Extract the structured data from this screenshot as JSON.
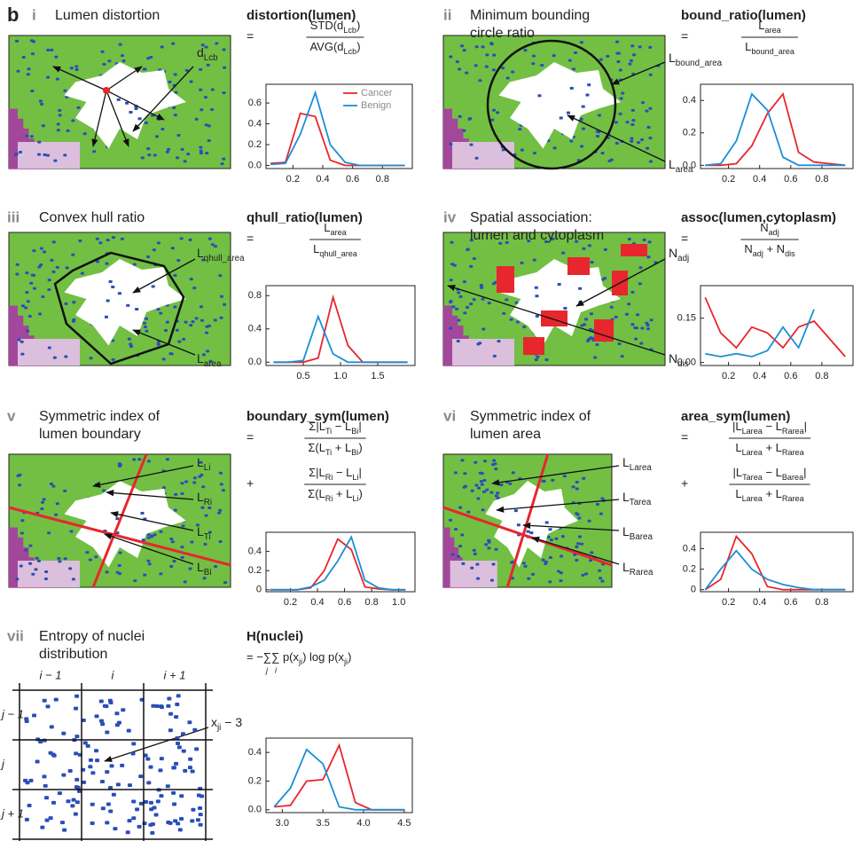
{
  "figure_label": "b",
  "panels": [
    {
      "numeral": "i",
      "title": [
        "Lumen distortion"
      ],
      "annotations": [
        [
          {
            "t": "d"
          },
          {
            "sub": "Lcb"
          }
        ]
      ],
      "formula": [
        {
          "op": "=",
          "num": [
            {
              "t": "STD(d"
            },
            {
              "sub": "Lcb"
            },
            {
              "t": ")"
            }
          ],
          "den": [
            {
              "t": "AVG(d"
            },
            {
              "sub": "Lcb"
            },
            {
              "t": ")"
            }
          ]
        }
      ]
    },
    {
      "numeral": "ii",
      "title": [
        "Minimum bounding",
        "circle ratio"
      ],
      "annotations": [
        [
          {
            "t": "L"
          },
          {
            "sub": "bound_area"
          }
        ],
        [
          {
            "t": "L"
          },
          {
            "sub": "area"
          }
        ]
      ],
      "formula": [
        {
          "op": "=",
          "num": [
            {
              "t": "L"
            },
            {
              "sub": "area"
            }
          ],
          "den": [
            {
              "t": "L"
            },
            {
              "sub": "bound_area"
            }
          ]
        }
      ]
    },
    {
      "numeral": "iii",
      "title": [
        "Convex hull ratio"
      ],
      "annotations": [
        [
          {
            "t": "L"
          },
          {
            "sub": "qhull_area"
          }
        ],
        [
          {
            "t": "L"
          },
          {
            "sub": "area"
          }
        ]
      ],
      "formula": [
        {
          "op": "=",
          "num": [
            {
              "t": "L"
            },
            {
              "sub": "area"
            }
          ],
          "den": [
            {
              "t": "L"
            },
            {
              "sub": "qhull_area"
            }
          ]
        }
      ]
    },
    {
      "numeral": "iv",
      "title": [
        "Spatial association:",
        "lumen and cytoplasm"
      ],
      "annotations": [
        [
          {
            "t": "N"
          },
          {
            "sub": "adj"
          }
        ],
        [
          {
            "t": "N"
          },
          {
            "sub": "dis"
          }
        ]
      ],
      "formula": [
        {
          "op": "=",
          "num": [
            {
              "t": "N"
            },
            {
              "sub": "adj"
            }
          ],
          "den": [
            {
              "t": "N"
            },
            {
              "sub": "adj"
            },
            {
              "t": " + N"
            },
            {
              "sub": "dis"
            }
          ]
        }
      ]
    },
    {
      "numeral": "v",
      "title": [
        "Symmetric index of",
        "lumen boundary"
      ],
      "annotations": [
        [
          {
            "t": "L"
          },
          {
            "sub": "Li"
          }
        ],
        [
          {
            "t": "L"
          },
          {
            "sub": "Ri"
          }
        ],
        [
          {
            "t": "L"
          },
          {
            "sub": "Ti"
          }
        ],
        [
          {
            "t": "L"
          },
          {
            "sub": "Bi"
          }
        ]
      ],
      "formula": [
        {
          "op": "=",
          "num": [
            {
              "t": "Σ|L"
            },
            {
              "sub": "Ti"
            },
            {
              "t": " − L"
            },
            {
              "sub": "Bi"
            },
            {
              "t": "|"
            }
          ],
          "den": [
            {
              "t": "Σ(L"
            },
            {
              "sub": "Ti"
            },
            {
              "t": " + L"
            },
            {
              "sub": "Bi"
            },
            {
              "t": ")"
            }
          ]
        },
        {
          "op": "+",
          "num": [
            {
              "t": "Σ|L"
            },
            {
              "sub": "Ri"
            },
            {
              "t": " − L"
            },
            {
              "sub": "Li"
            },
            {
              "t": "|"
            }
          ],
          "den": [
            {
              "t": "Σ(L"
            },
            {
              "sub": "Ri"
            },
            {
              "t": " + L"
            },
            {
              "sub": "Li"
            },
            {
              "t": ")"
            }
          ]
        }
      ]
    },
    {
      "numeral": "vi",
      "title": [
        "Symmetric index of",
        "lumen area"
      ],
      "annotations": [
        [
          {
            "t": "L"
          },
          {
            "sub": "Larea"
          }
        ],
        [
          {
            "t": "L"
          },
          {
            "sub": "Tarea"
          }
        ],
        [
          {
            "t": "L"
          },
          {
            "sub": "Barea"
          }
        ],
        [
          {
            "t": "L"
          },
          {
            "sub": "Rarea"
          }
        ]
      ],
      "formula": [
        {
          "op": "=",
          "num": [
            {
              "t": "|L"
            },
            {
              "sub": "Larea"
            },
            {
              "t": " − L"
            },
            {
              "sub": "Rarea"
            },
            {
              "t": "|"
            }
          ],
          "den": [
            {
              "t": "L"
            },
            {
              "sub": "Larea"
            },
            {
              "t": " + L"
            },
            {
              "sub": "Rarea"
            }
          ]
        },
        {
          "op": "+",
          "num": [
            {
              "t": "|L"
            },
            {
              "sub": "Tarea"
            },
            {
              "t": " − L"
            },
            {
              "sub": "Barea"
            },
            {
              "t": "|"
            }
          ],
          "den": [
            {
              "t": "L"
            },
            {
              "sub": "Larea"
            },
            {
              "t": " + L"
            },
            {
              "sub": "Rarea"
            }
          ]
        }
      ]
    },
    {
      "numeral": "vii",
      "title": [
        "Entropy of nuclei",
        "distribution"
      ],
      "annotations": [
        [
          {
            "t": "x"
          },
          {
            "sub": "ji"
          },
          {
            "t": " − 3"
          }
        ]
      ],
      "grid_columns": [
        "i − 1",
        "i",
        "i + 1"
      ],
      "grid_rows": [
        "j − 1",
        "j",
        "j + 1"
      ],
      "inline_formula": [
        {
          "t": "= −∑∑ p(x"
        },
        {
          "sub": "ji"
        },
        {
          "t": ") log p(x"
        },
        {
          "sub": "ji"
        },
        {
          "t": ")"
        }
      ],
      "sum_indices": [
        "j",
        "i"
      ]
    }
  ],
  "chart_data": [
    {
      "type": "line",
      "title": "distortion(lumen)",
      "legend": "upper right",
      "x": [
        0.05,
        0.15,
        0.25,
        0.35,
        0.45,
        0.55,
        0.65,
        0.75,
        0.85,
        0.95
      ],
      "series": [
        {
          "name": "Cancer",
          "color": "#e8262d",
          "values": [
            0.02,
            0.03,
            0.5,
            0.47,
            0.05,
            0,
            0,
            0,
            0,
            0
          ]
        },
        {
          "name": "Benign",
          "color": "#1b8fd6",
          "values": [
            0.01,
            0.02,
            0.3,
            0.7,
            0.2,
            0.03,
            0,
            0,
            0,
            0
          ]
        }
      ],
      "xlim": [
        0.02,
        1.0
      ],
      "xticks": [
        0.2,
        0.4,
        0.6,
        0.8
      ],
      "ylim": [
        -0.03,
        0.78
      ],
      "yticks": [
        {
          "value": 0,
          "label": "0.0"
        },
        0.2,
        0.4,
        0.6
      ]
    },
    {
      "type": "line",
      "title": "bound_ratio(lumen)",
      "x": [
        0.05,
        0.15,
        0.25,
        0.35,
        0.45,
        0.55,
        0.65,
        0.75,
        0.85,
        0.95
      ],
      "series": [
        {
          "color": "#e8262d",
          "values": [
            0,
            0,
            0.01,
            0.12,
            0.32,
            0.44,
            0.08,
            0.02,
            0.01,
            0
          ]
        },
        {
          "color": "#1b8fd6",
          "values": [
            0,
            0.01,
            0.15,
            0.44,
            0.34,
            0.05,
            0,
            0,
            0,
            0
          ]
        }
      ],
      "xlim": [
        0.02,
        1.0
      ],
      "xticks": [
        0.2,
        0.4,
        0.6,
        0.8
      ],
      "ylim": [
        -0.02,
        0.5
      ],
      "yticks": [
        {
          "value": 0,
          "label": "0.0"
        },
        0.2,
        0.4
      ]
    },
    {
      "type": "line",
      "title": "qhull_ratio(lumen)",
      "x": [
        0.1,
        0.3,
        0.5,
        0.7,
        0.9,
        1.1,
        1.3,
        1.5,
        1.7,
        1.9
      ],
      "series": [
        {
          "color": "#e8262d",
          "values": [
            0,
            0,
            0,
            0.05,
            0.78,
            0.2,
            0,
            0,
            0,
            0
          ]
        },
        {
          "color": "#1b8fd6",
          "values": [
            0,
            0,
            0.02,
            0.55,
            0.1,
            0,
            0,
            0,
            0,
            0
          ]
        }
      ],
      "xlim": [
        0,
        2.0
      ],
      "xticks": [
        0.5,
        {
          "value": 1,
          "label": "1.0"
        },
        1.5
      ],
      "ylim": [
        -0.04,
        0.92
      ],
      "yticks": [
        {
          "value": 0,
          "label": "0.0"
        },
        0.4,
        0.8
      ]
    },
    {
      "type": "line",
      "title": "assoc(lumen,cytoplasm)",
      "x": [
        0.05,
        0.15,
        0.25,
        0.35,
        0.45,
        0.55,
        0.65,
        0.75,
        0.85,
        0.95
      ],
      "series": [
        {
          "color": "#e8262d",
          "values": [
            0.22,
            0.1,
            0.05,
            0.12,
            0.1,
            0.05,
            0.12,
            0.14,
            0.08,
            0.02
          ]
        },
        {
          "color": "#1b8fd6",
          "values": [
            0.03,
            0.02,
            0.03,
            0.02,
            0.04,
            0.12,
            0.05,
            0.18,
            null,
            null
          ]
        }
      ],
      "xlim": [
        0.02,
        1.0
      ],
      "xticks": [
        0.2,
        0.4,
        0.6,
        0.8
      ],
      "ylim": [
        -0.01,
        0.26
      ],
      "yticks": [
        {
          "value": 0,
          "label": "0.00"
        },
        0.15
      ]
    },
    {
      "type": "line",
      "title": "boundary_sym(lumen)",
      "x": [
        0.05,
        0.15,
        0.25,
        0.35,
        0.45,
        0.55,
        0.65,
        0.75,
        0.85,
        0.95,
        1.05
      ],
      "series": [
        {
          "color": "#e8262d",
          "values": [
            0,
            0,
            0,
            0.02,
            0.2,
            0.53,
            0.42,
            0.03,
            0.01,
            0,
            0
          ]
        },
        {
          "color": "#1b8fd6",
          "values": [
            0,
            0,
            0,
            0.03,
            0.1,
            0.3,
            0.55,
            0.1,
            0.02,
            0,
            0
          ]
        }
      ],
      "xlim": [
        0.02,
        1.12
      ],
      "xticks": [
        0.2,
        0.4,
        0.6,
        0.8,
        {
          "value": 1,
          "label": "1.0"
        }
      ],
      "ylim": [
        -0.02,
        0.6
      ],
      "yticks": [
        0,
        0.2,
        0.4
      ]
    },
    {
      "type": "line",
      "title": "area_sym(lumen)",
      "x": [
        0.05,
        0.15,
        0.25,
        0.35,
        0.45,
        0.55,
        0.65,
        0.75,
        0.85,
        0.95
      ],
      "series": [
        {
          "color": "#e8262d",
          "values": [
            0,
            0.1,
            0.52,
            0.35,
            0.03,
            0,
            0,
            0,
            0,
            0
          ]
        },
        {
          "color": "#1b8fd6",
          "values": [
            0,
            0.2,
            0.38,
            0.2,
            0.1,
            0.05,
            0.02,
            0,
            0,
            0
          ]
        }
      ],
      "xlim": [
        0.02,
        1.0
      ],
      "xticks": [
        0.2,
        0.4,
        0.6,
        0.8
      ],
      "ylim": [
        -0.02,
        0.56
      ],
      "yticks": [
        0,
        0.2,
        0.4
      ]
    },
    {
      "type": "line",
      "title": "H(nuclei)",
      "x": [
        2.9,
        3.1,
        3.3,
        3.5,
        3.7,
        3.9,
        4.1,
        4.3,
        4.5
      ],
      "series": [
        {
          "color": "#e8262d",
          "values": [
            0.02,
            0.03,
            0.2,
            0.21,
            0.45,
            0.05,
            0,
            0,
            0
          ]
        },
        {
          "color": "#1b8fd6",
          "values": [
            0.02,
            0.15,
            0.42,
            0.32,
            0.02,
            0,
            0,
            0,
            0
          ]
        }
      ],
      "xlim": [
        2.8,
        4.6
      ],
      "xticks": [
        {
          "value": 3,
          "label": "3.0"
        },
        3.5,
        {
          "value": 4,
          "label": "4.0"
        },
        4.5
      ],
      "ylim": [
        -0.02,
        0.5
      ],
      "yticks": [
        {
          "value": 0,
          "label": "0.0"
        },
        0.2,
        0.4
      ]
    }
  ]
}
